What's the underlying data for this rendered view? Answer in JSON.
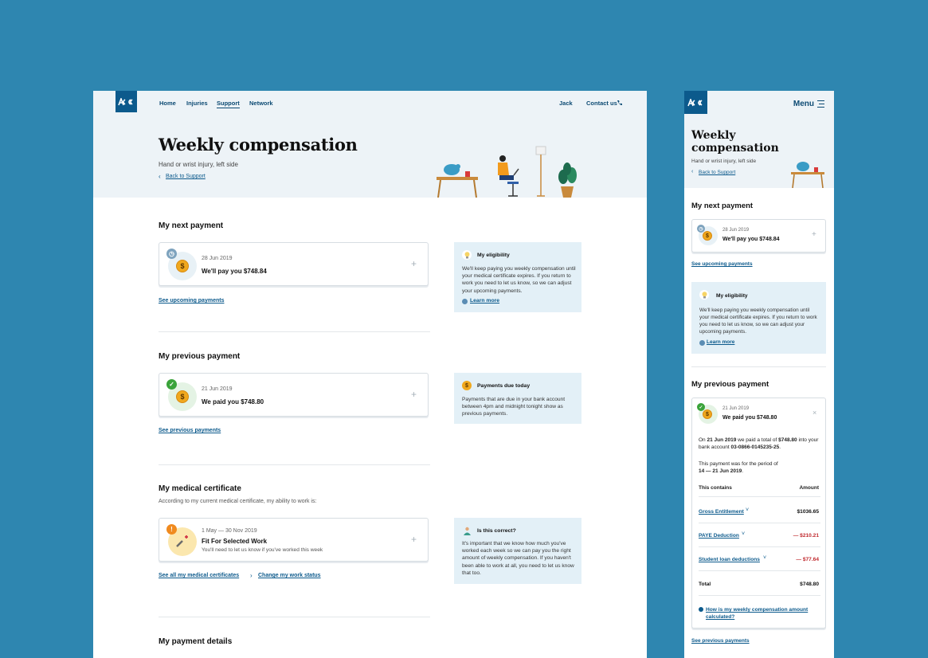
{
  "desktop": {
    "nav": {
      "home": "Home",
      "injuries": "Injuries",
      "support": "Support",
      "network": "Network",
      "user": "Jack",
      "contact": "Contact us"
    },
    "title": "Weekly compensation",
    "subtitle": "Hand or wrist injury, left side",
    "back": "Back to Support",
    "next_payment": {
      "heading": "My next payment",
      "date": "28 Jun 2019",
      "amount": "We'll pay you $748.84",
      "link": "See upcoming payments"
    },
    "eligibility": {
      "heading": "My eligibility",
      "body": "We'll keep paying you weekly compensation until your medical certificate expires. If you return to work you need to let us know, so we can adjust your upcoming payments.",
      "learn": "Learn more"
    },
    "previous_payment": {
      "heading": "My previous payment",
      "date": "21 Jun 2019",
      "amount": "We paid you $748.80",
      "link": "See previous payments"
    },
    "due_today": {
      "heading": "Payments due today",
      "body": "Payments that are due in your bank account between 4pm and midnight tonight show as previous payments."
    },
    "medical": {
      "heading": "My medical certificate",
      "sub": "According to my current medical certificate, my ability to work is:",
      "dates": "1 May — 30 Nov 2019",
      "status": "Fit For Selected Work",
      "note": "You'll need to let us know if you've worked this week",
      "link_all": "See all my medical certificates",
      "link_change": "Change my work status"
    },
    "correct": {
      "heading": "Is this correct?",
      "body": "It's important that we know how much you've worked each week so we can pay you the right amount of weekly compensation. If you haven't been able to work at all, you need to let us know that too."
    },
    "payment_details": {
      "heading": "My payment details"
    }
  },
  "mobile": {
    "menu": "Menu",
    "title": "Weekly compensation",
    "subtitle": "Hand or wrist injury, left side",
    "back": "Back to Support",
    "next_payment": {
      "heading": "My next payment",
      "date": "28 Jun 2019",
      "amount": "We'll pay you $748.84",
      "link": "See upcoming payments"
    },
    "eligibility": {
      "heading": "My eligibility",
      "body": "We'll keep paying you weekly compensation until your medical certificate expires. If you return to work you need to let us know, so we can adjust your upcoming payments.",
      "learn": "Learn more"
    },
    "previous_payment": {
      "heading": "My previous payment",
      "date": "21 Jun 2019",
      "amount": "We paid you $748.80",
      "on": "On",
      "on_date": "21 Jun 2019",
      "we_paid": "we paid a total of",
      "total_amt": "$748.80",
      "into": "into your bank account",
      "account": "03-0866-0145235-25",
      "period_text": "This payment was for the period of",
      "period": "14 — 21 Jun 2019",
      "contains": "This contains",
      "amount_col": "Amount",
      "rows": [
        {
          "label": "Gross Entitlement",
          "value": "$1036.65"
        },
        {
          "label": "PAYE Deduction",
          "value": "— $210.21"
        },
        {
          "label": "Student loan deductions",
          "value": "— $77.64"
        }
      ],
      "total_label": "Total",
      "total_value": "$748.80",
      "how_link": "How is my weekly compensation amount calculated?",
      "link": "See previous payments"
    }
  },
  "colors": {
    "background": "#2e86b0",
    "brand": "#0c5a8c",
    "hero": "#edf3f7",
    "info": "#e3f0f7",
    "coin": "#f0a81e",
    "deduction": "#c0282d"
  }
}
